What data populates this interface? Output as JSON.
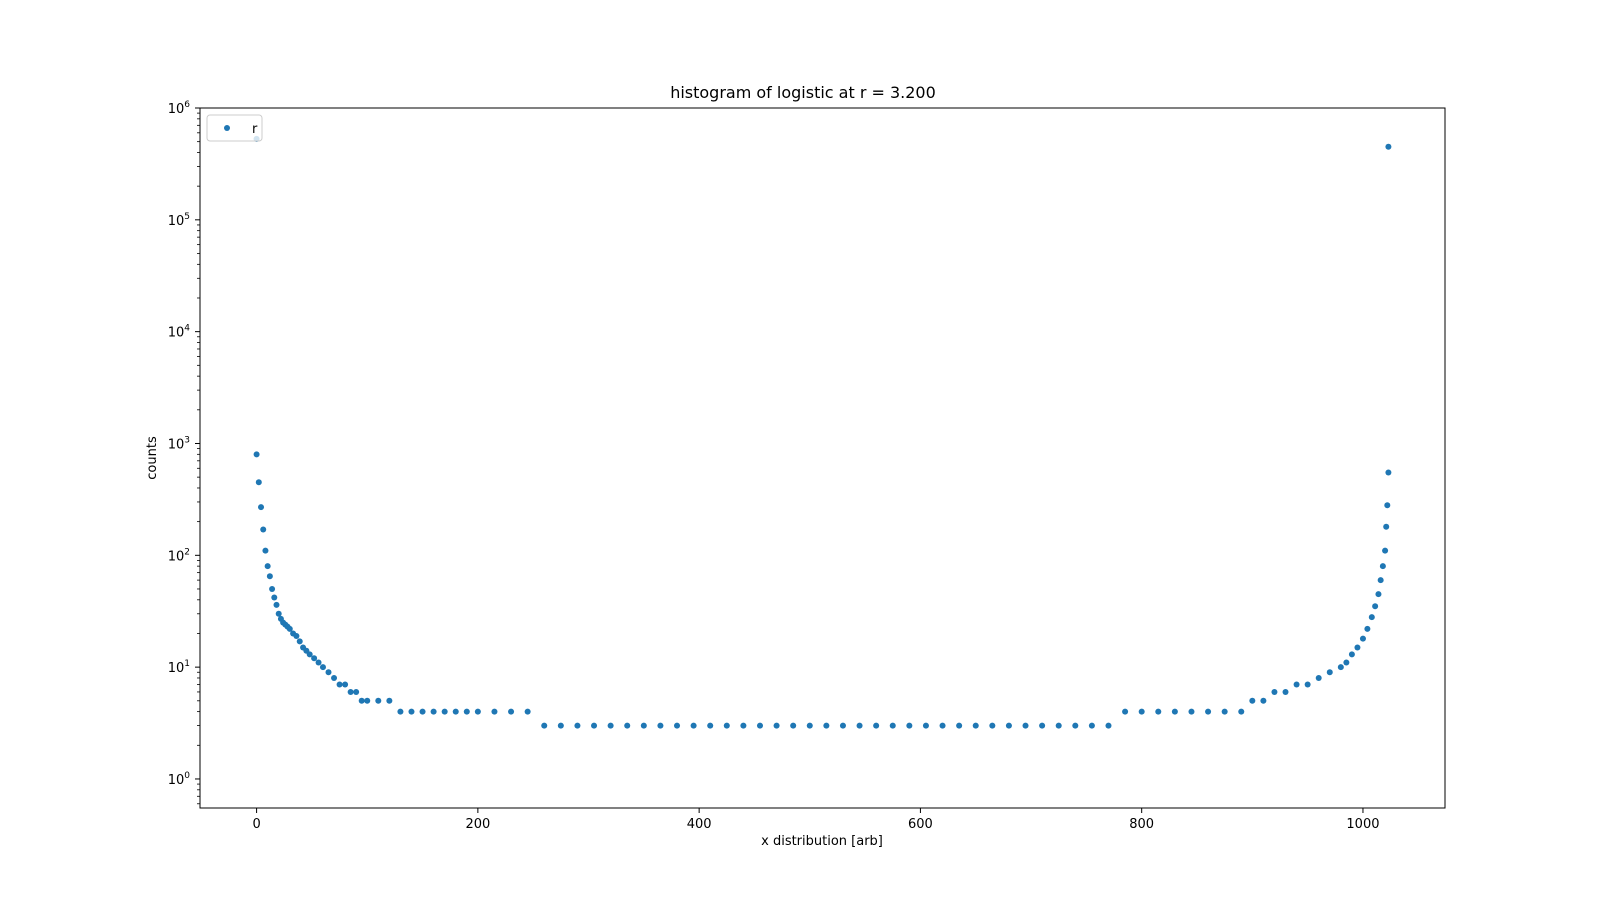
{
  "chart_data": {
    "type": "scatter",
    "title": "histogram of logistic at r = 3.200",
    "xlabel": "x distribution [arb]",
    "ylabel": "counts",
    "xlim": [
      -51.15,
      1074.15
    ],
    "ylim": [
      0.55,
      1000000
    ],
    "yscale": "log",
    "grid": false,
    "legend_position": "top-left",
    "x_ticks": [
      0,
      200,
      400,
      600,
      800,
      1000
    ],
    "x_tick_labels": [
      "0",
      "200",
      "400",
      "600",
      "800",
      "1000"
    ],
    "y_ticks": [
      1,
      10,
      100,
      1000,
      10000,
      100000,
      1000000
    ],
    "y_tick_exponents": [
      "0",
      "1",
      "2",
      "3",
      "4",
      "5",
      "6"
    ],
    "y_tick_base": "10",
    "series": [
      {
        "name": "r",
        "color": "#1f77b4",
        "marker": "circle",
        "x": [
          0,
          0,
          2,
          4,
          6,
          8,
          10,
          12,
          14,
          16,
          18,
          20,
          22,
          24,
          26,
          28,
          30,
          33,
          36,
          39,
          42,
          45,
          48,
          52,
          56,
          60,
          65,
          70,
          75,
          80,
          85,
          90,
          95,
          100,
          110,
          120,
          130,
          140,
          150,
          160,
          170,
          180,
          190,
          200,
          215,
          230,
          245,
          260,
          275,
          290,
          305,
          320,
          335,
          350,
          365,
          380,
          395,
          410,
          425,
          440,
          455,
          470,
          485,
          500,
          515,
          530,
          545,
          560,
          575,
          590,
          605,
          620,
          635,
          650,
          665,
          680,
          695,
          710,
          725,
          740,
          755,
          770,
          785,
          800,
          815,
          830,
          845,
          860,
          875,
          890,
          900,
          910,
          920,
          930,
          940,
          950,
          960,
          970,
          980,
          985,
          990,
          995,
          1000,
          1004,
          1008,
          1011,
          1014,
          1016,
          1018,
          1020,
          1021,
          1022,
          1023,
          1023
        ],
        "y": [
          530000,
          800,
          450,
          270,
          170,
          110,
          80,
          65,
          50,
          42,
          36,
          30,
          27,
          25,
          24,
          23,
          22,
          20,
          19,
          17,
          15,
          14,
          13,
          12,
          11,
          10,
          9,
          8,
          7,
          7,
          6,
          6,
          5,
          5,
          5,
          5,
          4,
          4,
          4,
          4,
          4,
          4,
          4,
          4,
          4,
          4,
          4,
          3,
          3,
          3,
          3,
          3,
          3,
          3,
          3,
          3,
          3,
          3,
          3,
          3,
          3,
          3,
          3,
          3,
          3,
          3,
          3,
          3,
          3,
          3,
          3,
          3,
          3,
          3,
          3,
          3,
          3,
          3,
          3,
          3,
          3,
          3,
          4,
          4,
          4,
          4,
          4,
          4,
          4,
          4,
          5,
          5,
          6,
          6,
          7,
          7,
          8,
          9,
          10,
          11,
          13,
          15,
          18,
          22,
          28,
          35,
          45,
          60,
          80,
          110,
          180,
          280,
          550,
          450000
        ]
      }
    ]
  }
}
